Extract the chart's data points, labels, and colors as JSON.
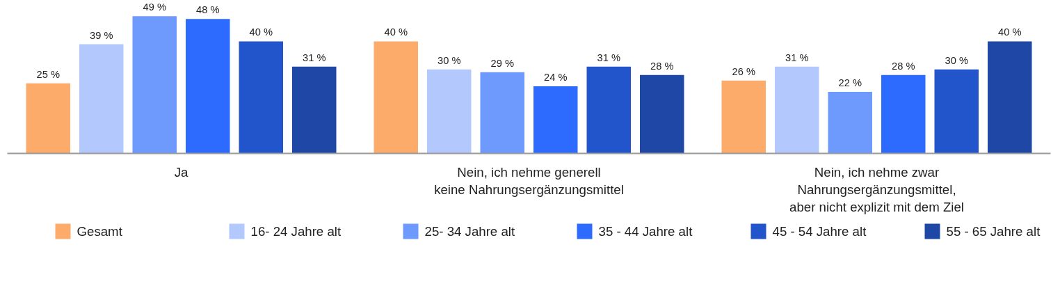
{
  "chart_data": {
    "type": "bar",
    "categories": [
      "Ja",
      "Nein, ich nehme generell\nkeine Nahrungsergänzungsmittel",
      "Nein, ich nehme zwar\nNahrungsergänzungsmittel,\naber nicht explizit mit dem Ziel"
    ],
    "legend": "bottom",
    "series": [
      {
        "name": "Gesamt",
        "color": "#fdab6b",
        "values": [
          25,
          40,
          26
        ],
        "value_labels": [
          "25 %",
          "40 %",
          "26 %"
        ]
      },
      {
        "name": "16- 24 Jahre alt",
        "color": "#b3c9fd",
        "values": [
          39,
          30,
          31
        ],
        "value_labels": [
          "39 %",
          "30 %",
          "31 %"
        ]
      },
      {
        "name": "25- 34 Jahre alt",
        "color": "#6e9afe",
        "values": [
          49,
          29,
          22
        ],
        "value_labels": [
          "49 %",
          "29 %",
          "22 %"
        ]
      },
      {
        "name": "35 - 44 Jahre alt",
        "color": "#2d6bfe",
        "values": [
          48,
          24,
          28
        ],
        "value_labels": [
          "48 %",
          "24 %",
          "28 %"
        ]
      },
      {
        "name": "45 - 54 Jahre alt",
        "color": "#2254cc",
        "values": [
          40,
          31,
          30
        ],
        "value_labels": [
          "40 %",
          "31 %",
          "30 %"
        ]
      },
      {
        "name": "55 - 65 Jahre alt",
        "color": "#1e47a6",
        "values": [
          31,
          28,
          40
        ],
        "value_labels": [
          "31 %",
          "28 %",
          "40 %"
        ]
      }
    ]
  }
}
